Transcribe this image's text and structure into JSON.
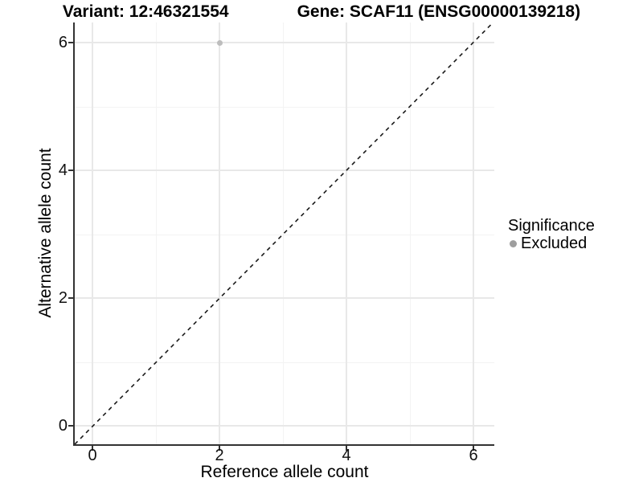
{
  "title": {
    "variant": "Variant: 12:46321554",
    "gene": "Gene: SCAF11 (ENSG00000139218)"
  },
  "axes": {
    "x": {
      "label": "Reference allele count",
      "ticks": [
        "0",
        "2",
        "4",
        "6"
      ]
    },
    "y": {
      "label": "Alternative allele count",
      "ticks": [
        "0",
        "2",
        "4",
        "6"
      ]
    }
  },
  "legend": {
    "title": "Significance",
    "items": [
      {
        "label": "Excluded",
        "color": "#9e9e9e"
      }
    ]
  },
  "colors": {
    "point": "#bdbdbd",
    "axis_line": "#333333",
    "grid_major": "#e8e8e8",
    "grid_minor": "#f3f3f3",
    "identity_line": "#1a1a1a"
  },
  "chart_data": {
    "type": "scatter",
    "title": "Variant: 12:46321554 | Gene: SCAF11 (ENSG00000139218)",
    "xlabel": "Reference allele count",
    "ylabel": "Alternative allele count",
    "xlim": [
      -0.3,
      6.33
    ],
    "ylim": [
      -0.3,
      6.31
    ],
    "x_ticks": [
      0,
      2,
      4,
      6
    ],
    "y_ticks": [
      0,
      2,
      4,
      6
    ],
    "grid": "major and minor, light gray",
    "legend_position": "right",
    "series": [
      {
        "name": "Excluded",
        "color": "#bdbdbd",
        "points": [
          {
            "x": 2,
            "y": 6
          }
        ]
      }
    ],
    "reference_line": {
      "kind": "identity y=x",
      "style": "dashed",
      "color": "#1a1a1a"
    }
  }
}
